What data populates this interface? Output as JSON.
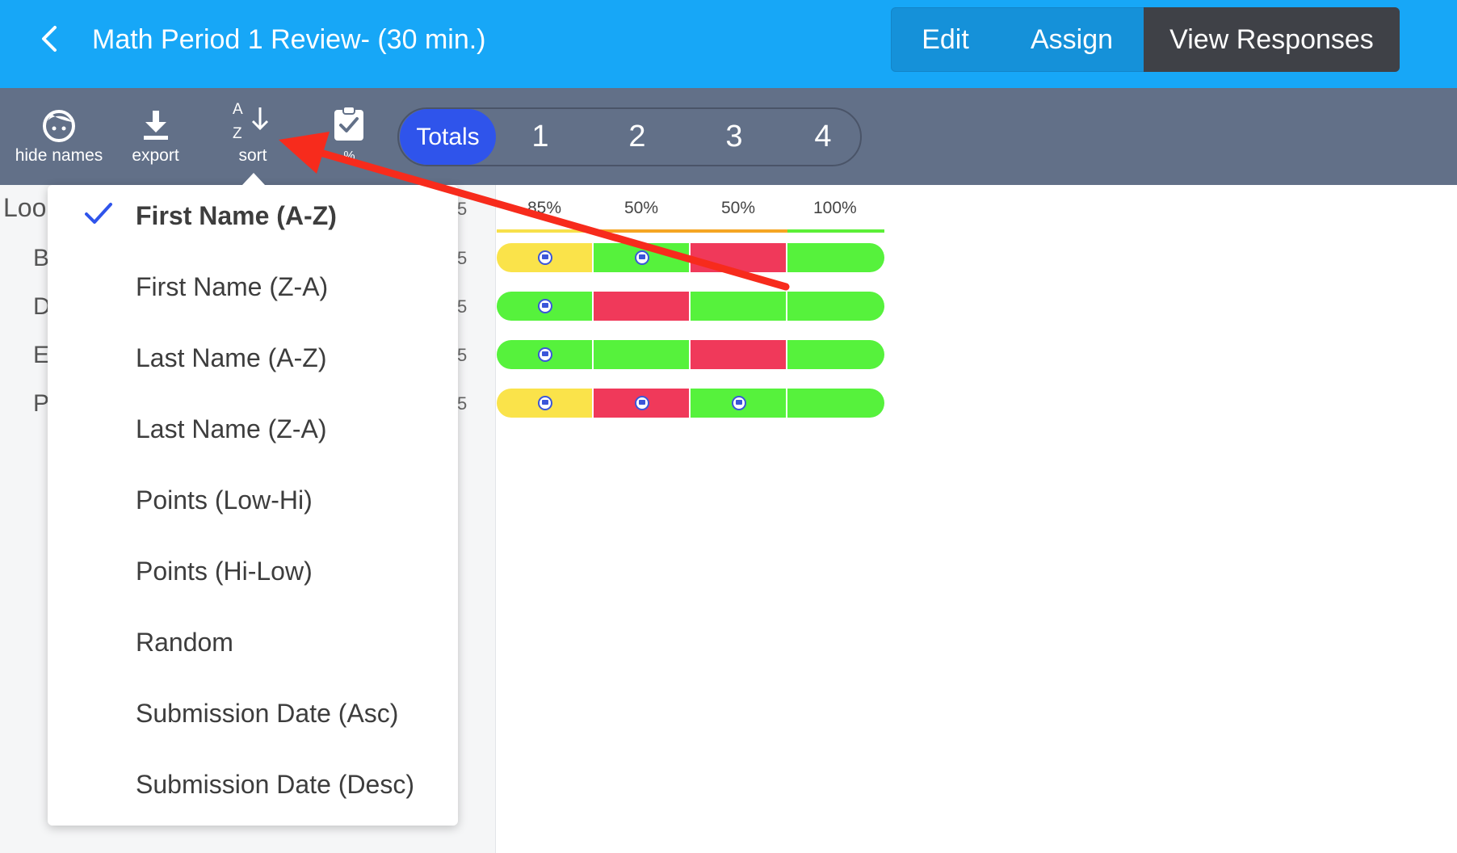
{
  "header": {
    "title": "Math Period 1 Review- (30 min.)",
    "segments": {
      "edit": "Edit",
      "assign": "Assign",
      "view_responses": "View Responses"
    }
  },
  "toolbar": {
    "hide_names": "hide names",
    "export": "export",
    "sort": "sort",
    "sort_icon_a": "A",
    "sort_icon_z": "Z",
    "percent": "%"
  },
  "question_tabs": [
    "Totals",
    "1",
    "2",
    "3",
    "4"
  ],
  "left_panel": {
    "header": "Loo",
    "rows": [
      "B",
      "D",
      "E",
      "P"
    ],
    "pct_suffix": [
      "5",
      "5",
      "5",
      "5",
      "5"
    ]
  },
  "grid": {
    "column_percents": [
      "85%",
      "50%",
      "50%",
      "100%"
    ],
    "underline_colors": [
      "#f7e04a",
      "#f5a623",
      "#f5a623",
      "#5cf037"
    ],
    "colors": {
      "green": "#56f23c",
      "red": "#f0395a",
      "yellow": "#fae34a",
      "comment": "#3b56d9"
    },
    "rows": [
      {
        "cells": [
          {
            "status": "yellow",
            "comment": true
          },
          {
            "status": "green",
            "comment": true
          },
          {
            "status": "red",
            "comment": false
          },
          {
            "status": "green",
            "comment": false
          }
        ]
      },
      {
        "cells": [
          {
            "status": "green",
            "comment": true
          },
          {
            "status": "red",
            "comment": false
          },
          {
            "status": "green",
            "comment": false
          },
          {
            "status": "green",
            "comment": false
          }
        ]
      },
      {
        "cells": [
          {
            "status": "green",
            "comment": true
          },
          {
            "status": "green",
            "comment": false
          },
          {
            "status": "red",
            "comment": false
          },
          {
            "status": "green",
            "comment": false
          }
        ]
      },
      {
        "cells": [
          {
            "status": "yellow",
            "comment": true
          },
          {
            "status": "red",
            "comment": true
          },
          {
            "status": "green",
            "comment": true
          },
          {
            "status": "green",
            "comment": false
          }
        ]
      }
    ]
  },
  "sort_menu": {
    "selected_index": 0,
    "items": [
      "First Name (A-Z)",
      "First Name (Z-A)",
      "Last Name (A-Z)",
      "Last Name (Z-A)",
      "Points (Low-Hi)",
      "Points (Hi-Low)",
      "Random",
      "Submission Date (Asc)",
      "Submission Date (Desc)"
    ]
  },
  "icons": {
    "back": "chevron-left-icon",
    "hide_names": "face-icon",
    "export": "download-icon",
    "sort": "sort-az-icon",
    "percent": "clipboard-check-icon",
    "selected": "checkmark-icon",
    "annotation": "red-arrow"
  },
  "accent_colors": {
    "header": "#17a7f7",
    "toolbar": "#627088",
    "active_tab": "#2f54eb",
    "view_segment": "#3f4147",
    "arrow": "#f72b1c"
  }
}
